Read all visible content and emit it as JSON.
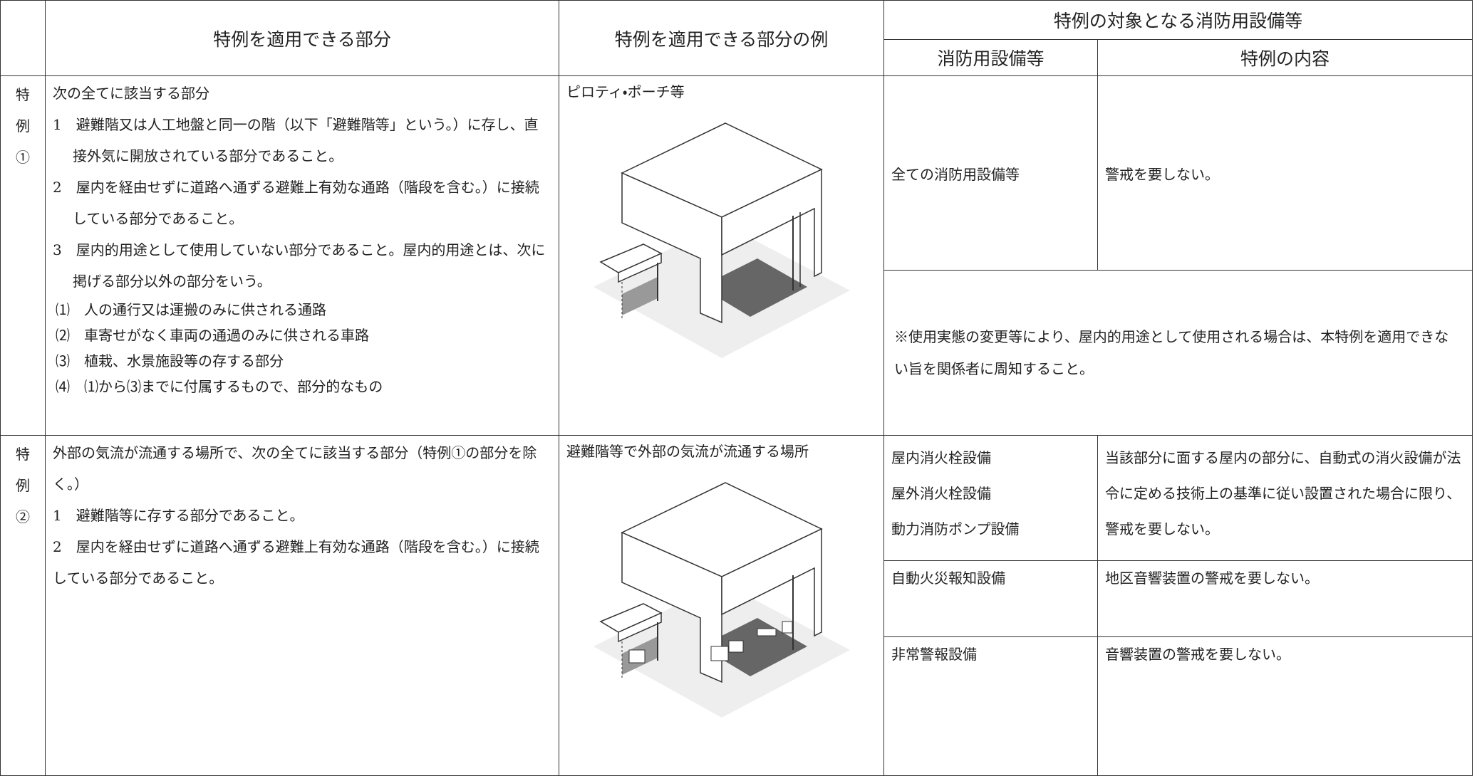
{
  "header": {
    "col1": "特例を適用できる部分",
    "col2": "特例を適用できる部分の例",
    "col3": "特例の対象となる消防用設備等",
    "col3a": "消防用設備等",
    "col3b": "特例の内容"
  },
  "rows": [
    {
      "label": "特例①",
      "intro": "次の全てに該当する部分",
      "items": [
        "1　避難階又は人工地盤と同一の階（以下「避難階等」という。）に存し、直接外気に開放されている部分であること。",
        "2　屋内を経由せずに道路へ通ずる避難上有効な通路（階段を含む。）に接続している部分であること。",
        "3　屋内的用途として使用していない部分であること。屋内的用途とは、次に掲げる部分以外の部分をいう。"
      ],
      "subitems": [
        "⑴　人の通行又は運搬のみに供される通路",
        "⑵　車寄せがなく車両の通過のみに供される車路",
        "⑶　植栽、水景施設等の存する部分",
        "⑷　⑴から⑶までに付属するもので、部分的なもの"
      ],
      "example": "ピロティ・ポーチ等",
      "equipment": [
        {
          "name": "全ての消防用設備等",
          "content": "警戒を要しない。"
        }
      ],
      "note": "※使用実態の変更等により、屋内的用途として使用される場合は、本特例を適用できない旨を関係者に周知すること。"
    },
    {
      "label": "特例②",
      "intro": "外部の気流が流通する場所で、次の全てに該当する部分（特例①の部分を除く。）",
      "items": [
        "1　避難階等に存する部分であること。",
        "2　屋内を経由せずに道路へ通ずる避難上有効な通路（階段を含む。）に接続している部分であること。"
      ],
      "example": "避難階等で外部の気流が流通する場所",
      "equipment": [
        {
          "names": [
            "屋内消火栓設備",
            "屋外消火栓設備",
            "動力消防ポンプ設備"
          ],
          "content": "当該部分に面する屋内の部分に、自動式の消火設備が法令に定める技術上の基準に従い設置された場合に限り、警戒を要しない。"
        },
        {
          "name": "自動火災報知設備",
          "content": "地区音響装置の警戒を要しない。"
        },
        {
          "name": "非常警報設備",
          "content": "音響装置の警戒を要しない。"
        }
      ]
    }
  ]
}
